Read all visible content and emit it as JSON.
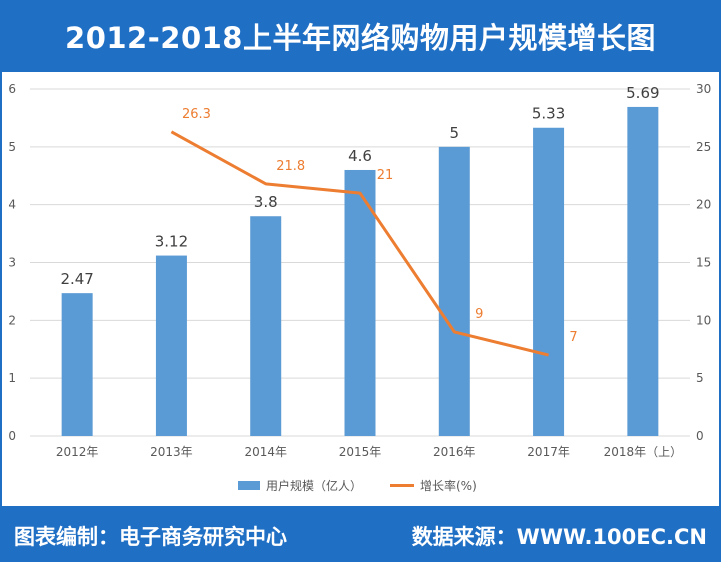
{
  "title": "2012-2018上半年网络购物用户规模增长图",
  "footer": {
    "left": "图表编制：电子商务研究中心",
    "right": "数据来源：WWW.100EC.CN"
  },
  "colors": {
    "banner": "#1f6fc5",
    "bar": "#5b9bd5",
    "line": "#ed7d31",
    "grid": "#d9d9d9"
  },
  "chart_data": {
    "type": "bar",
    "categories": [
      "2012年",
      "2013年",
      "2014年",
      "2015年",
      "2016年",
      "2017年",
      "2018年（上）"
    ],
    "series": [
      {
        "name": "用户规模（亿人）",
        "type": "bar",
        "axis": "left",
        "values": [
          2.47,
          3.12,
          3.8,
          4.6,
          5,
          5.33,
          5.69
        ]
      },
      {
        "name": "增长率(%)",
        "type": "line",
        "axis": "right",
        "values": [
          null,
          26.3,
          21.8,
          21,
          9,
          7,
          null
        ]
      }
    ],
    "y_left": {
      "range": [
        0,
        6
      ],
      "ticks": [
        0,
        1,
        2,
        3,
        4,
        5,
        6
      ]
    },
    "y_right": {
      "range": [
        0,
        30
      ],
      "ticks": [
        0,
        5,
        10,
        15,
        20,
        25,
        30
      ]
    },
    "grid": true,
    "legend": "bottom"
  }
}
